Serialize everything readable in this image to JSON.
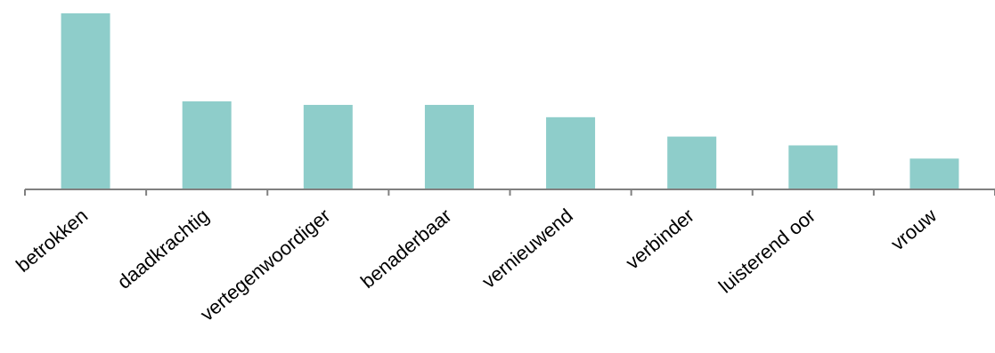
{
  "chart_data": {
    "type": "bar",
    "categories": [
      "betrokken",
      "daadkrachtig",
      "vertegenwoordiger",
      "benaderbaar",
      "vernieuwend",
      "verbinder",
      "luisterend oor",
      "vrouw"
    ],
    "values": [
      100,
      50,
      48,
      48,
      41,
      30,
      25,
      17.5
    ],
    "ylim": [
      0,
      100
    ],
    "colors": {
      "bar": "#8ecdca",
      "axis": "#808080",
      "text": "#000000"
    },
    "grid": false
  }
}
